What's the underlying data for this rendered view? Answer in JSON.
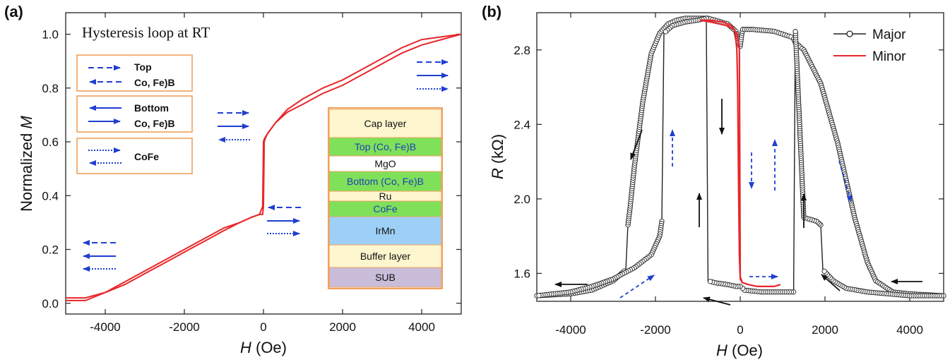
{
  "chart_data": [
    {
      "panel": "(a)",
      "type": "line",
      "title": "Hysteresis loop at RT",
      "xlabel_italic": "H",
      "xlabel_unit": " (Oe)",
      "ylabel_prefix": "Normalized ",
      "ylabel_italic": "M",
      "xlim": [
        -5000,
        5000
      ],
      "ylim": [
        -0.04,
        1.08
      ],
      "x_ticks": [
        -4000,
        -2000,
        0,
        2000,
        4000
      ],
      "y_ticks": [
        0.0,
        0.2,
        0.4,
        0.6,
        0.8,
        1.0
      ],
      "y_tick_labels": [
        "0.0",
        "0.2",
        "0.4",
        "0.6",
        "0.8",
        "1.0"
      ],
      "line_color": "#e8262a",
      "series": [
        {
          "x": [
            -5000,
            -4500,
            -4000,
            -3500,
            -3000,
            -2500,
            -2000,
            -1500,
            -1000,
            -600,
            -300,
            -100,
            -20,
            0,
            20,
            100,
            300,
            600,
            1000,
            1500,
            2000,
            2500,
            3000,
            3500,
            4000,
            4500,
            5000
          ],
          "y": [
            0.02,
            0.02,
            0.04,
            0.07,
            0.11,
            0.15,
            0.19,
            0.23,
            0.27,
            0.3,
            0.32,
            0.33,
            0.36,
            0.6,
            0.61,
            0.63,
            0.67,
            0.71,
            0.74,
            0.78,
            0.81,
            0.85,
            0.89,
            0.93,
            0.96,
            0.98,
            1.0
          ]
        },
        {
          "x": [
            5000,
            4500,
            4000,
            3500,
            3000,
            2500,
            2000,
            1500,
            1000,
            600,
            300,
            100,
            40,
            20,
            0,
            -20,
            -100,
            -300,
            -600,
            -1000,
            -1500,
            -2000,
            -2500,
            -3000,
            -3500,
            -4000,
            -4500,
            -5000
          ],
          "y": [
            1.0,
            0.99,
            0.98,
            0.95,
            0.91,
            0.87,
            0.83,
            0.8,
            0.76,
            0.72,
            0.67,
            0.63,
            0.61,
            0.6,
            0.36,
            0.33,
            0.33,
            0.32,
            0.3,
            0.28,
            0.24,
            0.2,
            0.16,
            0.12,
            0.08,
            0.04,
            0.01,
            0.01
          ]
        }
      ],
      "legend": [
        {
          "label1": "Top",
          "label2": "Co, Fe)B",
          "style": "dashed"
        },
        {
          "label1": "Bottom",
          "label2": "Co, Fe)B",
          "style": "solid"
        },
        {
          "label1": "CoFe",
          "label2": "",
          "style": "dotted"
        }
      ],
      "stack_layers": [
        {
          "label": "Cap layer",
          "color": "#fdf6cf",
          "text_color": "#111111"
        },
        {
          "label": "Top (Co, Fe)B",
          "color": "#7fe05a",
          "text_color": "#1f3fb5"
        },
        {
          "label": "MgO",
          "color": "#ffffff",
          "text_color": "#111111"
        },
        {
          "label": "Bottom (Co, Fe)B",
          "color": "#7fe05a",
          "text_color": "#1f3fb5"
        },
        {
          "label": "Ru",
          "color": "#fdf6cf",
          "text_color": "#111111"
        },
        {
          "label": "CoFe",
          "color": "#7fe05a",
          "text_color": "#1f3fb5"
        },
        {
          "label": "IrMn",
          "color": "#9ed0f7",
          "text_color": "#111111"
        },
        {
          "label": "Buffer layer",
          "color": "#fdf6cf",
          "text_color": "#111111"
        },
        {
          "label": "SUB",
          "color": "#c9bdd9",
          "text_color": "#111111"
        }
      ]
    },
    {
      "panel": "(b)",
      "type": "line",
      "xlabel_italic": "H",
      "xlabel_unit": " (Oe)",
      "ylabel_italic": "R",
      "ylabel_unit": " (kΩ)",
      "xlim": [
        -4800,
        4800
      ],
      "ylim": [
        1.45,
        3.0
      ],
      "x_ticks": [
        -4000,
        -2000,
        0,
        2000,
        4000
      ],
      "y_ticks": [
        1.6,
        2.0,
        2.4,
        2.8
      ],
      "y_tick_labels": [
        "1.6",
        "2.0",
        "2.4",
        "2.8"
      ],
      "series": [
        {
          "name": "Major",
          "color": "#222222",
          "marker": "circle",
          "x": [
            -4800,
            -4000,
            -3500,
            -3000,
            -2700,
            -2650,
            -2600,
            -2500,
            -2300,
            -2100,
            -1900,
            -1700,
            -1500,
            -1300,
            -1000,
            -800,
            -760,
            -600,
            -300,
            -100,
            -60,
            0,
            40,
            60,
            300,
            800,
            1200,
            1260,
            1300,
            1500,
            1900,
            2300,
            2700,
            3000,
            3200,
            3600,
            4000,
            4800
          ],
          "y": [
            1.48,
            1.49,
            1.51,
            1.56,
            1.62,
            1.86,
            1.95,
            2.17,
            2.52,
            2.78,
            2.89,
            2.94,
            2.96,
            2.97,
            2.97,
            2.97,
            2.97,
            2.96,
            2.94,
            2.9,
            2.85,
            2.82,
            2.89,
            2.91,
            2.91,
            2.9,
            2.87,
            2.86,
            2.84,
            2.8,
            2.62,
            2.3,
            1.9,
            1.66,
            1.56,
            1.5,
            1.49,
            1.48
          ]
        },
        {
          "name": "Major",
          "color": "#222222",
          "marker": "circle",
          "x": [
            4800,
            4000,
            3500,
            3000,
            2500,
            2200,
            1950,
            1900,
            1800,
            1500,
            1300,
            1260,
            1000,
            500,
            100,
            60,
            0,
            -100,
            -300,
            -600,
            -760,
            -800,
            -1000,
            -1300,
            -1600,
            -1800,
            -1850,
            -1900,
            -2100,
            -2500,
            -3000,
            -3500,
            -4000,
            -4800
          ],
          "y": [
            1.48,
            1.48,
            1.49,
            1.5,
            1.52,
            1.56,
            1.62,
            1.86,
            1.88,
            1.9,
            2.91,
            1.5,
            1.5,
            1.5,
            1.51,
            1.52,
            1.53,
            1.53,
            1.54,
            1.55,
            1.56,
            2.97,
            2.96,
            2.95,
            2.93,
            2.89,
            1.88,
            1.8,
            1.7,
            1.63,
            1.57,
            1.53,
            1.5,
            1.48
          ]
        },
        {
          "name": "Minor",
          "color": "#e8262a",
          "marker": "none",
          "x": [
            -950,
            -700,
            -500,
            -300,
            -150,
            -80,
            -50,
            -20,
            0,
            50,
            200,
            400,
            600,
            800,
            950,
            950,
            800,
            600,
            400,
            200,
            50,
            0,
            -20,
            -40,
            -60,
            -80,
            -120,
            -200,
            -400,
            -700,
            -950
          ],
          "y": [
            2.96,
            2.95,
            2.94,
            2.93,
            2.91,
            2.89,
            2.85,
            2.82,
            1.58,
            1.55,
            1.54,
            1.53,
            1.53,
            1.53,
            1.54,
            1.54,
            1.53,
            1.53,
            1.53,
            1.54,
            1.55,
            1.57,
            1.7,
            2.1,
            2.6,
            2.8,
            2.9,
            2.93,
            2.95,
            2.96,
            2.96
          ]
        }
      ],
      "legend": [
        {
          "label": "Major",
          "color": "#222222",
          "marker": "circle"
        },
        {
          "label": "Minor",
          "color": "#e8262a",
          "marker": "none"
        }
      ]
    }
  ]
}
